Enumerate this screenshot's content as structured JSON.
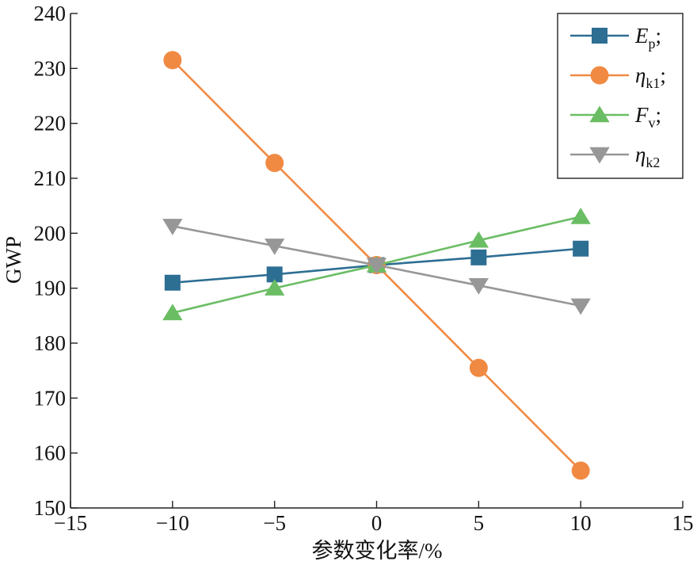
{
  "chart_data": {
    "type": "line",
    "title": "",
    "xlabel": "参数变化率/%",
    "ylabel": "GWP",
    "xlim": [
      -15,
      15
    ],
    "ylim": [
      150,
      240
    ],
    "xticks": [
      -15,
      -10,
      -5,
      0,
      5,
      10,
      15
    ],
    "xtick_labels": [
      "−15",
      "−10",
      "−5",
      "0",
      "5",
      "10",
      "15"
    ],
    "yticks": [
      150,
      160,
      170,
      180,
      190,
      200,
      210,
      220,
      230,
      240
    ],
    "ytick_labels": [
      "150",
      "160",
      "170",
      "180",
      "190",
      "200",
      "210",
      "220",
      "230",
      "240"
    ],
    "grid": false,
    "legend_position": "top-right",
    "x": [
      -10,
      -5,
      0,
      5,
      10
    ],
    "series": [
      {
        "name": "Ep;",
        "symbol": "E",
        "subscript": "p",
        "suffix": ";",
        "marker": "square",
        "color": "#2d6e93",
        "values": [
          191.0,
          192.5,
          194.2,
          195.6,
          197.2
        ]
      },
      {
        "name": "ηk1;",
        "symbol": "η",
        "subscript": "k1",
        "suffix": ";",
        "marker": "circle",
        "color": "#f08a43",
        "values": [
          231.5,
          212.8,
          194.2,
          175.5,
          156.8
        ]
      },
      {
        "name": "Fv;",
        "symbol": "F",
        "subscript": "v",
        "suffix": ";",
        "marker": "triangle-up",
        "color": "#6bbd64",
        "values": [
          185.5,
          190.0,
          194.2,
          198.7,
          203.0
        ]
      },
      {
        "name": "ηk2",
        "symbol": "η",
        "subscript": "k2",
        "suffix": "",
        "marker": "triangle-down",
        "color": "#979797",
        "values": [
          201.3,
          197.7,
          194.2,
          190.5,
          186.8
        ]
      }
    ]
  }
}
